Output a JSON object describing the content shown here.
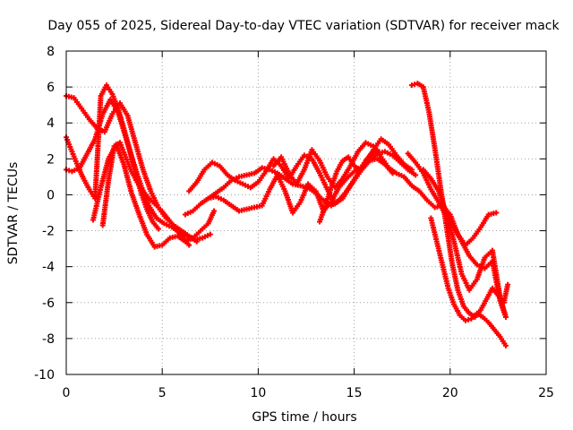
{
  "chart_data": {
    "type": "scatter",
    "title": "Day 055 of 2025, Sidereal Day-to-day VTEC variation (SDTVAR) for receiver mack",
    "xlabel": "GPS time / hours",
    "ylabel": "SDTVAR / TECUs",
    "xlim": [
      0,
      25
    ],
    "ylim": [
      -10,
      8
    ],
    "xticks": [
      0,
      5,
      10,
      15,
      20,
      25
    ],
    "yticks": [
      -10,
      -8,
      -6,
      -4,
      -2,
      0,
      2,
      4,
      6,
      8
    ],
    "grid": true,
    "marker": "plus",
    "color": "#ff0000",
    "series": [
      {
        "name": "trace-1",
        "x": [
          0.0,
          0.4,
          0.8,
          1.2,
          1.6,
          2.0,
          2.4,
          2.8,
          3.2,
          3.6,
          4.0,
          4.4,
          4.8,
          5.2,
          5.6,
          6.0,
          6.4,
          6.8
        ],
        "y": [
          5.5,
          5.4,
          4.8,
          4.2,
          3.7,
          3.5,
          4.5,
          5.1,
          4.4,
          2.9,
          1.4,
          0.2,
          -0.7,
          -1.3,
          -1.7,
          -2.0,
          -2.3,
          -2.6
        ]
      },
      {
        "name": "trace-2",
        "x": [
          0.0,
          0.3,
          0.6,
          0.9,
          1.2,
          1.5,
          1.8,
          2.1,
          2.4,
          2.7,
          3.0,
          3.3,
          3.6,
          3.9,
          4.2,
          4.5,
          4.8
        ],
        "y": [
          3.2,
          2.4,
          1.6,
          0.9,
          0.3,
          -0.2,
          5.5,
          6.1,
          5.6,
          4.8,
          3.7,
          2.5,
          1.3,
          0.1,
          -0.8,
          -1.5,
          -1.9
        ]
      },
      {
        "name": "trace-3",
        "x": [
          0.0,
          0.3,
          0.7,
          1.1,
          1.5,
          1.9,
          2.3,
          2.7,
          3.1,
          3.5,
          3.9,
          4.3,
          4.7,
          5.1,
          5.5,
          5.9,
          6.3,
          6.7,
          7.1,
          7.5
        ],
        "y": [
          1.4,
          1.3,
          1.5,
          2.3,
          3.1,
          4.5,
          5.3,
          4.6,
          3.2,
          1.8,
          0.5,
          -0.6,
          -1.3,
          -1.6,
          -1.8,
          -2.1,
          -2.3,
          -2.5,
          -2.4,
          -2.2
        ]
      },
      {
        "name": "trace-4",
        "x": [
          1.4,
          1.8,
          2.2,
          2.6,
          3.0,
          3.4,
          3.8,
          4.2,
          4.6,
          5.0,
          5.4,
          5.8,
          6.2,
          6.6,
          7.0,
          7.4,
          7.7
        ],
        "y": [
          -1.4,
          0.4,
          2.0,
          2.8,
          1.7,
          0.1,
          -1.1,
          -2.2,
          -2.9,
          -2.8,
          -2.4,
          -2.3,
          -2.6,
          -2.4,
          -2.0,
          -1.6,
          -0.9
        ]
      },
      {
        "name": "trace-5",
        "x": [
          1.9,
          2.2,
          2.5,
          2.8,
          3.1,
          3.4,
          3.7,
          4.0,
          4.3,
          4.6,
          4.9,
          5.2,
          5.5,
          5.8,
          6.1,
          6.4
        ],
        "y": [
          -1.7,
          0.8,
          2.7,
          2.9,
          2.1,
          1.3,
          0.7,
          0.2,
          -0.2,
          -0.5,
          -0.8,
          -1.2,
          -1.6,
          -2.0,
          -2.4,
          -2.8
        ]
      },
      {
        "name": "trace-6",
        "x": [
          6.2,
          6.6,
          7.0,
          7.4,
          7.8,
          8.2,
          8.6,
          9.0,
          9.4,
          9.8,
          10.2,
          10.6,
          11.0,
          11.4,
          11.8,
          12.2,
          12.6,
          13.0,
          13.4,
          13.8,
          14.2,
          14.6,
          15.0,
          15.4,
          15.8,
          16.2,
          16.6,
          17.0,
          17.4,
          17.8,
          18.2
        ],
        "y": [
          -1.1,
          -0.9,
          -0.5,
          -0.2,
          0.1,
          0.4,
          0.8,
          1.0,
          1.1,
          1.2,
          1.5,
          1.4,
          1.2,
          0.9,
          0.6,
          0.5,
          0.4,
          0.1,
          -0.3,
          -0.6,
          -0.3,
          0.2,
          0.8,
          1.4,
          1.9,
          2.3,
          2.4,
          2.2,
          1.8,
          1.4,
          1.1
        ]
      },
      {
        "name": "trace-7",
        "x": [
          6.4,
          6.8,
          7.2,
          7.6,
          8.0,
          8.4,
          8.8,
          9.2,
          9.6,
          10.0,
          10.4,
          10.8,
          11.2,
          11.6,
          12.0,
          12.4,
          12.8,
          13.2,
          13.6,
          14.0,
          14.4,
          14.8,
          15.2,
          15.6,
          16.0,
          16.4,
          16.8,
          17.2,
          17.6,
          18.0
        ],
        "y": [
          0.2,
          0.7,
          1.4,
          1.8,
          1.6,
          1.1,
          0.8,
          0.6,
          0.4,
          0.7,
          1.3,
          2.0,
          1.6,
          0.9,
          1.6,
          2.2,
          2.0,
          1.2,
          0.3,
          -0.5,
          -0.2,
          0.5,
          1.2,
          1.8,
          2.5,
          3.1,
          2.8,
          2.2,
          1.7,
          1.4
        ]
      },
      {
        "name": "trace-8",
        "x": [
          7.4,
          7.8,
          8.2,
          8.6,
          9.0,
          9.4,
          9.8,
          10.2,
          10.6,
          11.0,
          11.4,
          11.8,
          12.2,
          12.6,
          13.0,
          13.4,
          13.8,
          14.2,
          14.6,
          15.0,
          15.4,
          15.8,
          16.2,
          16.6,
          17.0
        ],
        "y": [
          -0.2,
          -0.1,
          -0.3,
          -0.6,
          -0.9,
          -0.8,
          -0.7,
          -0.6,
          0.3,
          1.1,
          0.2,
          -1.0,
          -0.4,
          0.6,
          0.2,
          -0.9,
          -0.4,
          0.4,
          0.9,
          1.3,
          1.5,
          1.9,
          2.0,
          1.7,
          1.2
        ]
      },
      {
        "name": "trace-9",
        "x": [
          10.8,
          11.2,
          11.6,
          12.0,
          12.4,
          12.8,
          13.2,
          13.6,
          14.0,
          14.4,
          14.8,
          15.2,
          15.6,
          16.0,
          16.4,
          16.8,
          17.2,
          17.6,
          18.0,
          18.4,
          18.8,
          19.2,
          19.6,
          20.0,
          20.4,
          20.8,
          21.2,
          21.6,
          22.0,
          22.4
        ],
        "y": [
          1.6,
          2.1,
          1.2,
          0.6,
          1.4,
          2.5,
          1.9,
          1.0,
          0.4,
          0.9,
          1.6,
          2.4,
          2.9,
          2.7,
          2.1,
          1.5,
          1.2,
          1.0,
          0.5,
          0.2,
          -0.3,
          -0.7,
          -0.6,
          -1.1,
          -2.2,
          -2.8,
          -2.4,
          -1.8,
          -1.1,
          -1.0
        ]
      },
      {
        "name": "trace-10",
        "x": [
          17.8,
          18.2,
          18.6,
          19.0,
          19.4,
          19.8,
          20.2,
          20.6,
          21.0,
          21.4,
          21.8,
          22.2,
          22.6,
          22.9
        ],
        "y": [
          2.3,
          1.8,
          1.2,
          0.3,
          -0.4,
          -1.2,
          -1.8,
          -2.6,
          -3.4,
          -3.9,
          -4.1,
          -3.7,
          -5.9,
          -6.8
        ]
      },
      {
        "name": "trace-11",
        "x": [
          18.0,
          18.3,
          18.6,
          18.9,
          19.2,
          19.5,
          19.8,
          20.1,
          20.4,
          20.7,
          21.0,
          21.3,
          21.6,
          21.9,
          22.2,
          22.5,
          22.8,
          23.0
        ],
        "y": [
          6.1,
          6.2,
          6.0,
          4.6,
          2.6,
          0.4,
          -1.7,
          -3.8,
          -5.3,
          -6.2,
          -6.6,
          -6.8,
          -6.4,
          -5.8,
          -5.2,
          -5.6,
          -6.0,
          -5.0
        ]
      },
      {
        "name": "trace-12",
        "x": [
          18.6,
          19.0,
          19.4,
          19.8,
          20.2,
          20.6,
          21.0,
          21.4,
          21.8,
          22.2,
          22.6,
          22.9
        ],
        "y": [
          1.4,
          0.9,
          0.2,
          -1.0,
          -2.6,
          -4.4,
          -5.3,
          -4.7,
          -3.5,
          -3.1,
          -5.7,
          -6.8
        ]
      },
      {
        "name": "trace-13",
        "x": [
          19.0,
          19.3,
          19.6,
          19.9,
          20.2,
          20.5,
          20.8,
          21.1,
          21.4,
          21.7,
          22.0,
          22.3,
          22.6,
          22.9
        ],
        "y": [
          -1.3,
          -2.6,
          -3.9,
          -5.2,
          -6.1,
          -6.7,
          -7.0,
          -6.9,
          -6.6,
          -6.8,
          -7.1,
          -7.5,
          -7.9,
          -8.4
        ]
      },
      {
        "name": "trace-14",
        "x": [
          13.2,
          13.5,
          13.8,
          14.1,
          14.4,
          14.7,
          15.0,
          15.3,
          15.6,
          15.9,
          16.2
        ],
        "y": [
          -1.5,
          -0.6,
          0.4,
          1.3,
          1.9,
          2.1,
          1.6,
          1.4,
          1.9,
          2.3,
          2.5
        ]
      }
    ]
  }
}
